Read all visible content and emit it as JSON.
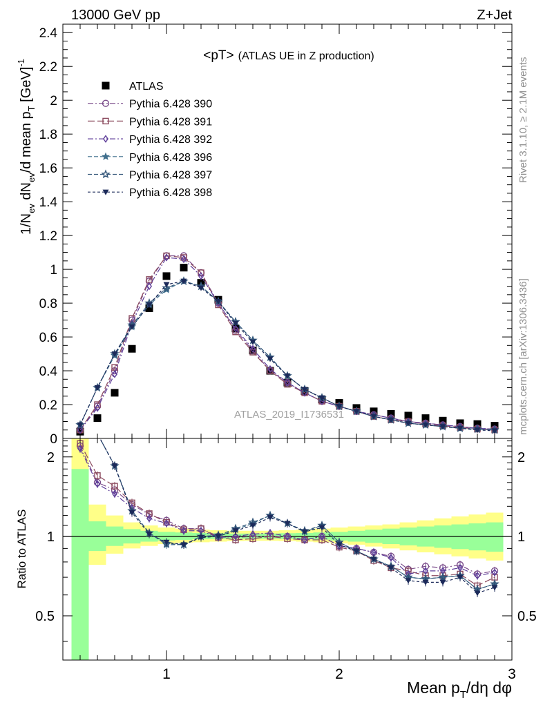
{
  "header": {
    "left": "13000 GeV pp",
    "right": "Z+Jet"
  },
  "side_labels": {
    "rivet": "Rivet 3.1.10, ≥ 2.1M events",
    "mcplots": "mcplots.cern.ch [arXiv:1306.3436]"
  },
  "watermark": "ATLAS_2019_I1736531",
  "chart_data": [
    {
      "type": "line",
      "title": "<pT>",
      "subtitle": "(ATLAS UE in Z production)",
      "ylabel": "1/N_ev dN_ev/d mean p_T [GeV]^-1",
      "xlim": [
        0.4,
        3.0
      ],
      "ylim": [
        0,
        2.45
      ],
      "yticks": [
        0,
        0.2,
        0.4,
        0.6,
        0.8,
        1,
        1.2,
        1.4,
        1.6,
        1.8,
        2,
        2.2,
        2.4
      ],
      "ytick_labels": [
        "0",
        "0.2",
        "0.4",
        "0.6",
        "0.8",
        "1",
        "1.2",
        "1.4",
        "1.6",
        "1.8",
        "2",
        "2.2",
        "2.4"
      ],
      "legend_position": "top-left",
      "x": [
        0.5,
        0.6,
        0.7,
        0.8,
        0.9,
        1.0,
        1.1,
        1.2,
        1.3,
        1.4,
        1.5,
        1.6,
        1.7,
        1.8,
        1.9,
        2.0,
        2.1,
        2.2,
        2.3,
        2.4,
        2.5,
        2.6,
        2.7,
        2.8,
        2.9
      ],
      "series": [
        {
          "name": "ATLAS",
          "color": "#000000",
          "marker": "square-filled",
          "dash": "none",
          "values": [
            0.04,
            0.12,
            0.27,
            0.53,
            0.77,
            0.96,
            1.01,
            0.92,
            0.82,
            0.65,
            0.52,
            0.4,
            0.33,
            0.28,
            0.23,
            0.21,
            0.18,
            0.16,
            0.145,
            0.135,
            0.12,
            0.105,
            0.09,
            0.085,
            0.075
          ]
        },
        {
          "name": "Pythia 6.428 390",
          "color": "#7b4d8b",
          "marker": "circle-open",
          "dash": "8,3,2,3",
          "values": [
            0.05,
            0.19,
            0.4,
            0.7,
            0.93,
            1.08,
            1.08,
            0.98,
            0.8,
            0.64,
            0.52,
            0.4,
            0.33,
            0.27,
            0.22,
            0.19,
            0.16,
            0.14,
            0.12,
            0.1,
            0.09,
            0.08,
            0.07,
            0.06,
            0.055
          ]
        },
        {
          "name": "Pythia 6.428 391",
          "color": "#8b4a5e",
          "marker": "square-open",
          "dash": "10,4",
          "values": [
            0.05,
            0.2,
            0.42,
            0.71,
            0.94,
            1.08,
            1.07,
            0.98,
            0.79,
            0.63,
            0.51,
            0.4,
            0.32,
            0.27,
            0.22,
            0.19,
            0.16,
            0.13,
            0.11,
            0.1,
            0.085,
            0.075,
            0.065,
            0.055,
            0.05
          ]
        },
        {
          "name": "Pythia 6.428 392",
          "color": "#5e3d99",
          "marker": "diamond-open",
          "dash": "8,3,2,3",
          "values": [
            0.05,
            0.18,
            0.38,
            0.68,
            0.9,
            1.07,
            1.06,
            0.96,
            0.8,
            0.65,
            0.53,
            0.41,
            0.33,
            0.27,
            0.22,
            0.19,
            0.16,
            0.14,
            0.12,
            0.1,
            0.09,
            0.08,
            0.07,
            0.06,
            0.055
          ]
        },
        {
          "name": "Pythia 6.428 396",
          "color": "#3f6e8c",
          "marker": "star-filled",
          "dash": "6,3",
          "values": [
            0.08,
            0.3,
            0.49,
            0.66,
            0.79,
            0.88,
            0.93,
            0.9,
            0.81,
            0.69,
            0.58,
            0.48,
            0.37,
            0.29,
            0.24,
            0.19,
            0.16,
            0.13,
            0.11,
            0.09,
            0.08,
            0.07,
            0.06,
            0.055,
            0.05
          ]
        },
        {
          "name": "Pythia 6.428 397",
          "color": "#34577a",
          "marker": "star-open",
          "dash": "6,3",
          "values": [
            0.08,
            0.3,
            0.5,
            0.67,
            0.8,
            0.89,
            0.93,
            0.9,
            0.81,
            0.69,
            0.58,
            0.48,
            0.37,
            0.29,
            0.24,
            0.19,
            0.16,
            0.13,
            0.11,
            0.09,
            0.08,
            0.07,
            0.06,
            0.055,
            0.05
          ]
        },
        {
          "name": "Pythia 6.428 398",
          "color": "#1c2a5a",
          "marker": "triangle-down-filled",
          "dash": "4,3",
          "values": [
            0.08,
            0.3,
            0.5,
            0.66,
            0.79,
            0.91,
            0.93,
            0.89,
            0.81,
            0.68,
            0.57,
            0.47,
            0.37,
            0.29,
            0.24,
            0.19,
            0.16,
            0.13,
            0.11,
            0.09,
            0.08,
            0.07,
            0.06,
            0.05,
            0.045
          ]
        }
      ]
    },
    {
      "type": "line",
      "title": "",
      "ylabel": "Ratio to ATLAS",
      "xlabel": "Mean p_T/dη dφ",
      "xlim": [
        0.4,
        3.0
      ],
      "ylim": [
        0.34,
        2.35
      ],
      "log_y": true,
      "xticks": [
        1,
        2,
        3
      ],
      "xtick_labels": [
        "1",
        "2",
        "3"
      ],
      "yticks": [
        0.5,
        1,
        2
      ],
      "ytick_labels": [
        "0.5",
        "1",
        "2"
      ],
      "x": [
        0.5,
        0.6,
        0.7,
        0.8,
        0.9,
        1.0,
        1.1,
        1.2,
        1.3,
        1.4,
        1.5,
        1.6,
        1.7,
        1.8,
        1.9,
        2.0,
        2.1,
        2.2,
        2.3,
        2.4,
        2.5,
        2.6,
        2.7,
        2.8,
        2.9
      ],
      "bands": {
        "bin_edges": [
          0.45,
          0.55,
          0.65,
          0.75,
          0.85,
          0.95,
          1.05,
          1.15,
          1.25,
          1.35,
          1.45,
          1.55,
          1.65,
          1.75,
          1.85,
          1.95,
          2.05,
          2.15,
          2.25,
          2.35,
          2.45,
          2.55,
          2.65,
          2.75,
          2.85,
          2.95
        ],
        "yellow_color": "#ffff88",
        "green_color": "#99ff99",
        "yellow": {
          "lo": [
            0.34,
            0.78,
            0.86,
            0.9,
            0.92,
            0.935,
            0.945,
            0.95,
            0.955,
            0.96,
            0.962,
            0.962,
            0.96,
            0.955,
            0.95,
            0.94,
            0.93,
            0.915,
            0.9,
            0.885,
            0.87,
            0.855,
            0.84,
            0.825,
            0.81
          ],
          "hi": [
            2.35,
            1.32,
            1.2,
            1.13,
            1.1,
            1.08,
            1.07,
            1.06,
            1.055,
            1.05,
            1.05,
            1.05,
            1.055,
            1.06,
            1.07,
            1.08,
            1.09,
            1.1,
            1.11,
            1.13,
            1.15,
            1.17,
            1.19,
            1.21,
            1.23
          ]
        },
        "green": {
          "lo": [
            0.34,
            0.88,
            0.92,
            0.94,
            0.955,
            0.965,
            0.97,
            0.975,
            0.978,
            0.98,
            0.98,
            0.98,
            0.978,
            0.975,
            0.972,
            0.965,
            0.955,
            0.945,
            0.935,
            0.925,
            0.915,
            0.905,
            0.895,
            0.885,
            0.875
          ],
          "hi": [
            1.8,
            1.14,
            1.09,
            1.065,
            1.05,
            1.04,
            1.035,
            1.03,
            1.028,
            1.025,
            1.025,
            1.025,
            1.028,
            1.03,
            1.035,
            1.04,
            1.05,
            1.06,
            1.07,
            1.08,
            1.09,
            1.1,
            1.11,
            1.12,
            1.13
          ]
        }
      },
      "series": [
        {
          "name": "Pythia 6.428 390",
          "values": [
            2.2,
            1.6,
            1.5,
            1.32,
            1.21,
            1.15,
            1.07,
            1.07,
            1.0,
            0.99,
            1.0,
            1.0,
            1.0,
            0.97,
            1.0,
            0.92,
            0.9,
            0.87,
            0.84,
            0.75,
            0.77,
            0.76,
            0.78,
            0.72,
            0.74
          ]
        },
        {
          "name": "Pythia 6.428 391",
          "values": [
            2.25,
            1.7,
            1.55,
            1.34,
            1.22,
            1.13,
            1.06,
            1.07,
            0.99,
            0.97,
            0.98,
            1.0,
            0.98,
            0.97,
            0.97,
            0.91,
            0.88,
            0.81,
            0.76,
            0.74,
            0.71,
            0.71,
            0.72,
            0.65,
            0.7
          ]
        },
        {
          "name": "Pythia 6.428 392",
          "values": [
            2.15,
            1.58,
            1.45,
            1.28,
            1.17,
            1.12,
            1.05,
            1.05,
            0.99,
            1.0,
            1.02,
            1.03,
            1.0,
            0.97,
            1.0,
            0.92,
            0.9,
            0.87,
            0.83,
            0.72,
            0.74,
            0.74,
            0.76,
            0.71,
            0.73
          ]
        },
        {
          "name": "Pythia 6.428 396",
          "values": [
            2.5,
            2.45,
            1.85,
            1.25,
            1.03,
            0.93,
            0.93,
            1.0,
            1.0,
            1.06,
            1.12,
            1.2,
            1.12,
            1.04,
            1.1,
            0.95,
            0.88,
            0.82,
            0.77,
            0.7,
            0.69,
            0.7,
            0.71,
            0.63,
            0.66
          ]
        },
        {
          "name": "Pythia 6.428 397",
          "values": [
            2.5,
            2.45,
            1.85,
            1.25,
            1.03,
            0.94,
            0.93,
            1.0,
            1.01,
            1.07,
            1.13,
            1.2,
            1.12,
            1.05,
            1.1,
            0.95,
            0.88,
            0.82,
            0.77,
            0.7,
            0.69,
            0.7,
            0.71,
            0.63,
            0.66
          ]
        },
        {
          "name": "Pythia 6.428 398",
          "values": [
            2.5,
            2.45,
            1.85,
            1.23,
            1.02,
            0.95,
            0.93,
            0.99,
            1.0,
            1.05,
            1.1,
            1.18,
            1.12,
            1.04,
            1.08,
            0.93,
            0.88,
            0.82,
            0.76,
            0.68,
            0.67,
            0.67,
            0.7,
            0.61,
            0.64
          ]
        }
      ]
    }
  ]
}
